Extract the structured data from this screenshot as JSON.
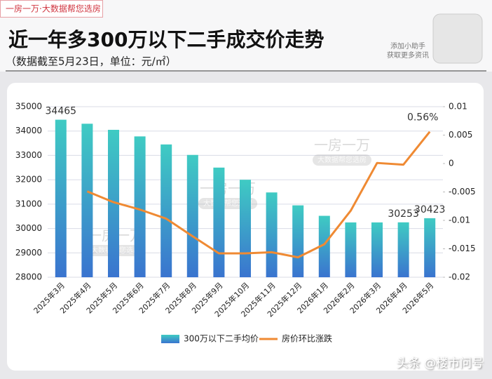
{
  "header": {
    "tag": "一房一万·大数据帮您选房",
    "title": "近一年多300万以下二手成交价走势",
    "subtitle": "（数据截至5月23日，单位：元/㎡）",
    "side_note": [
      "添加小助手",
      "获取更多资讯"
    ]
  },
  "chart_data": {
    "type": "bar_line",
    "categories": [
      "2025年3月",
      "2025年4月",
      "2025年5月",
      "2025年6月",
      "2025年7月",
      "2025年8月",
      "2025年9月",
      "2025年10月",
      "2025年11月",
      "2025年12月",
      "2026年1月",
      "2026年2月",
      "2026年3月",
      "2026年4月",
      "2026年5月"
    ],
    "series": [
      {
        "name": "300万以下二手均价",
        "type": "bar",
        "color": "#3fcbc3",
        "values": [
          34465,
          34300,
          34050,
          33780,
          33450,
          33020,
          32500,
          32000,
          31480,
          30950,
          30520,
          30250,
          30250,
          30253,
          30423
        ],
        "value_labels": [
          "34465",
          null,
          null,
          null,
          null,
          null,
          null,
          null,
          null,
          null,
          null,
          null,
          null,
          "30253",
          "30423"
        ]
      },
      {
        "name": "房价环比涨跌",
        "type": "line",
        "axis": "y2",
        "color": "#ef8a33",
        "values": [
          null,
          -0.0049,
          -0.0068,
          -0.0081,
          -0.0097,
          -0.0128,
          -0.0158,
          -0.0158,
          -0.0156,
          -0.0165,
          -0.0142,
          -0.0083,
          0.0001,
          -0.0002,
          0.0056
        ],
        "value_labels": [
          null,
          null,
          null,
          null,
          null,
          null,
          null,
          null,
          null,
          null,
          null,
          null,
          null,
          null,
          "0.56%"
        ]
      }
    ],
    "ylim": [
      28000,
      35000
    ],
    "yticks": [
      28000,
      29000,
      30000,
      31000,
      32000,
      33000,
      34000,
      35000
    ],
    "y2lim": [
      -0.02,
      0.01
    ],
    "y2ticks": [
      -0.02,
      -0.015,
      -0.01,
      -0.005,
      0,
      0.005,
      0.01
    ],
    "grid": true,
    "legend": "bottom",
    "watermarks": [
      {
        "title": "一房一万",
        "subtitle": "大数据帮您选房"
      },
      {
        "title": "一房一万",
        "subtitle": "大数据帮您选房"
      },
      {
        "title": "一房一万",
        "subtitle": "大数据帮您选房"
      }
    ]
  },
  "footer": "头条 @楼市问号"
}
